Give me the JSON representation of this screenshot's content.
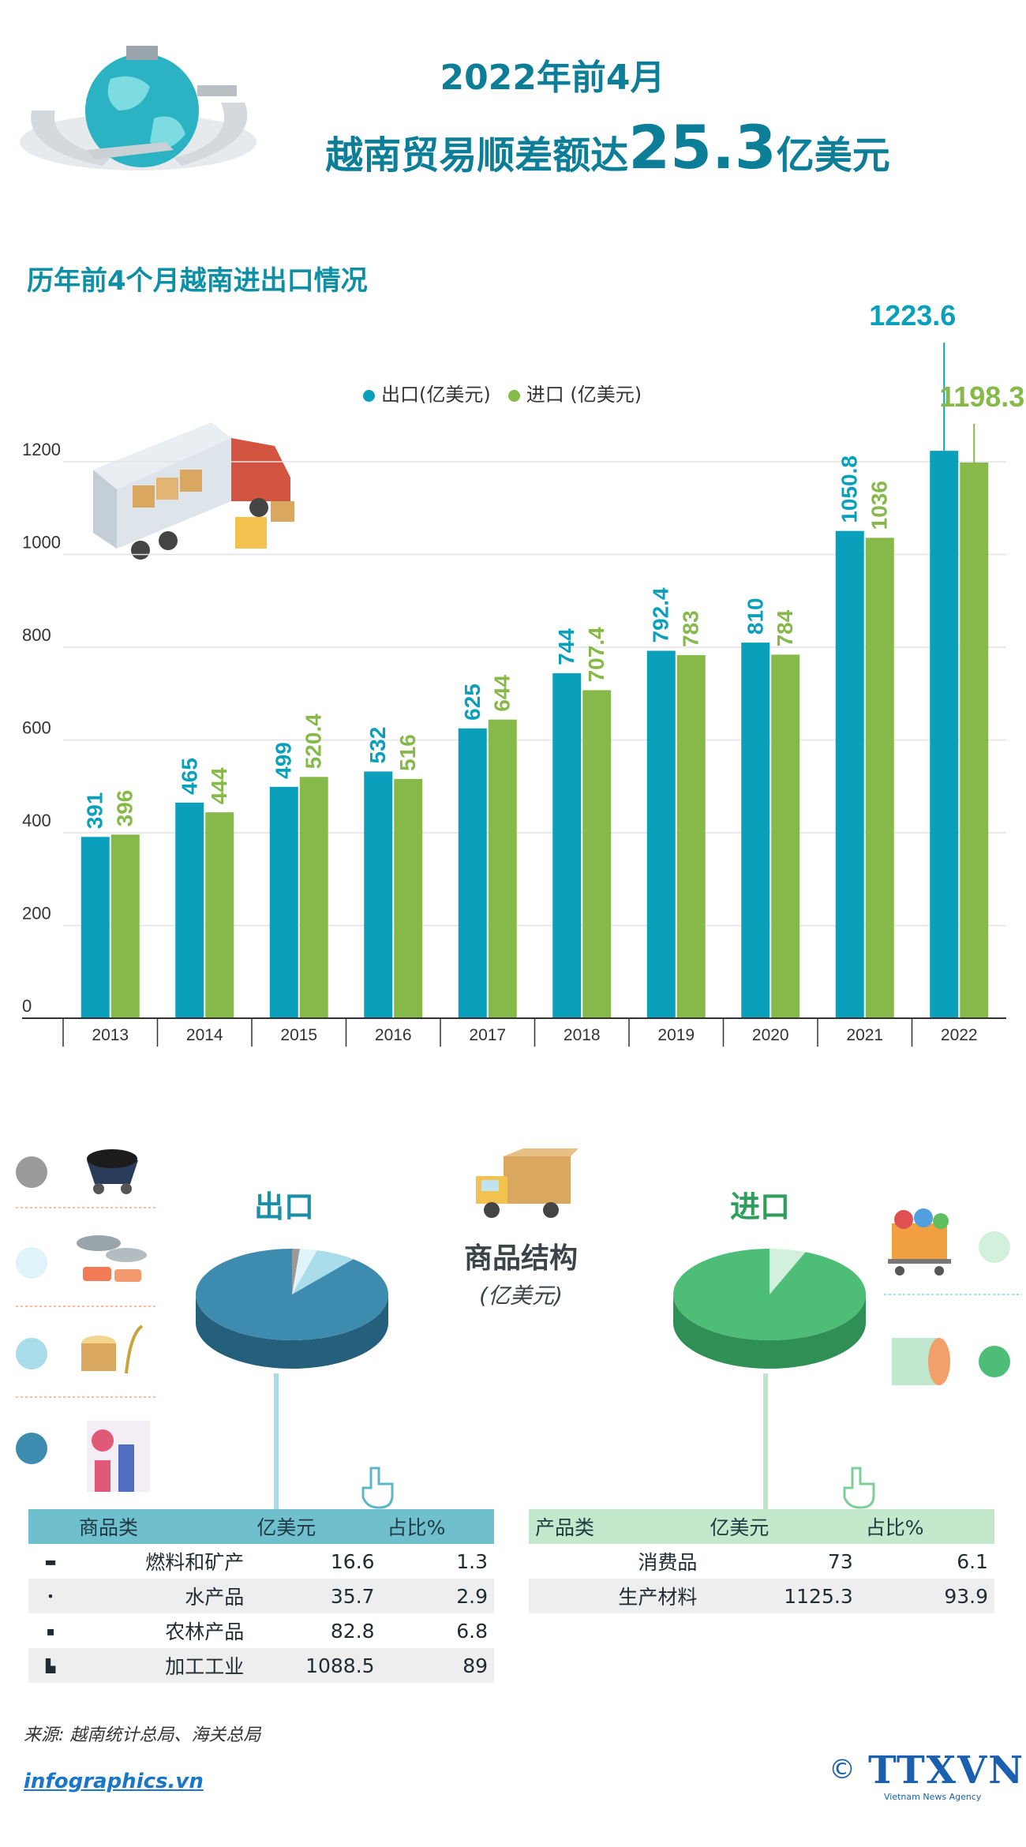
{
  "header": {
    "line1": "2022年前4月",
    "line2_prefix": "越南贸易顺差额达",
    "line2_value": "25.3",
    "line2_suffix": "亿美元"
  },
  "chart_section_title": "历年前4个月越南进出口情况",
  "chart_data": {
    "type": "bar",
    "title": "历年前4个月越南进出口情况",
    "categories": [
      "2013",
      "2014",
      "2015",
      "2016",
      "2017",
      "2018",
      "2019",
      "2020",
      "2021",
      "2022"
    ],
    "series": [
      {
        "name": "出口(亿美元)",
        "color": "#0aa0bb",
        "values": [
          391,
          465,
          499,
          532,
          625,
          744,
          792.4,
          810,
          1050.8,
          1223.6
        ],
        "labels": [
          "391",
          "465",
          "499",
          "532",
          "625",
          "744",
          "792.4",
          "810",
          "1050.8",
          "1223.6"
        ]
      },
      {
        "name": "进口 (亿美元)",
        "color": "#86b94a",
        "values": [
          396,
          444,
          520.4,
          516,
          644,
          707.4,
          783,
          784,
          1036,
          1198.3
        ],
        "labels": [
          "396",
          "444",
          "520.4",
          "516",
          "644",
          "707.4",
          "783",
          "784",
          "1036",
          "1198.3"
        ]
      }
    ],
    "ylim": [
      0,
      1200
    ],
    "yticks": [
      "0",
      "200",
      "400",
      "600",
      "800",
      "1000",
      "1200"
    ],
    "grid": true,
    "legend_position": "top"
  },
  "structure": {
    "title": "商品结构",
    "unit": "(亿美元)",
    "export_title": "出口",
    "import_title": "进口",
    "export_pie": [
      {
        "name": "燃料和矿产",
        "percent": 1.3,
        "color": "#9a9a9a"
      },
      {
        "name": "水产品",
        "percent": 2.9,
        "color": "#dff3fb"
      },
      {
        "name": "农林产品",
        "percent": 6.8,
        "color": "#a9dde9"
      },
      {
        "name": "加工工业",
        "percent": 89,
        "color": "#3e8bb0"
      }
    ],
    "import_pie": [
      {
        "name": "消费品",
        "percent": 6.1,
        "color": "#d2f0dc"
      },
      {
        "name": "生产材料",
        "percent": 93.9,
        "color": "#4dbd77"
      }
    ],
    "export_table": {
      "headers": [
        "商品类",
        "亿美元",
        "占比%"
      ],
      "rows": [
        {
          "name": "燃料和矿产",
          "value": "16.6",
          "pct": "1.3"
        },
        {
          "name": "水产品",
          "value": "35.7",
          "pct": "2.9"
        },
        {
          "name": "农林产品",
          "value": "82.8",
          "pct": "6.8"
        },
        {
          "name": "加工工业",
          "value": "1088.5",
          "pct": "89"
        }
      ]
    },
    "import_table": {
      "headers": [
        "产品类",
        "亿美元",
        "占比%"
      ],
      "rows": [
        {
          "name": "消费品",
          "value": "73",
          "pct": "6.1"
        },
        {
          "name": "生产材料",
          "value": "1125.3",
          "pct": "93.9"
        }
      ]
    }
  },
  "footer": {
    "source": "来源: 越南统计总局、海关总局",
    "site": "infographics.vn",
    "logo": "TTXVN",
    "logo_sub": "Vietnam News Agency",
    "copyright": "©"
  }
}
